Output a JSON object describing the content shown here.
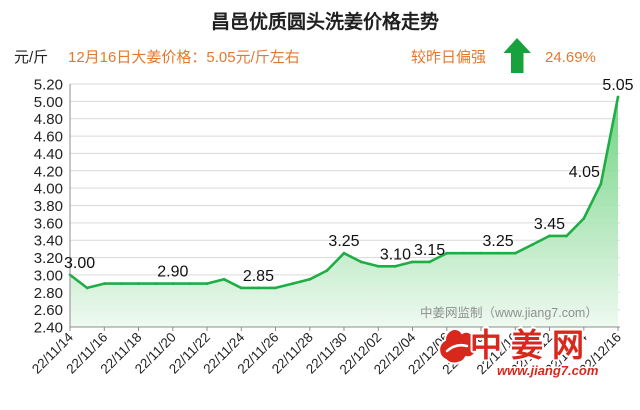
{
  "summary": {
    "price_note": "12月16日大姜价格：5.05元/斤左右",
    "trend_text": "较昨日偏强",
    "trend_icon": "up-arrow-icon",
    "change_pct": "24.69%"
  },
  "watermark": "中姜网监制（www.jiang7.com）",
  "logo": {
    "icon": "ginger-logo-icon",
    "name": "中姜网",
    "url": "www.jiang7.com"
  },
  "colors": {
    "title": "#1f1f1f",
    "unit": "#222222",
    "accent": "#e5782e",
    "trend_up": "#17a23e",
    "series_line": "#1fae45",
    "area_top": "#63cf76",
    "area_bottom": "#eef9f0",
    "grid": "#d9d9d9",
    "logo": "#d8281d",
    "watermark": "#8f8f8f"
  },
  "chart_data": {
    "type": "area",
    "title": "昌邑优质圆头洗姜价格走势",
    "ylabel": "元/斤",
    "ylim": [
      2.4,
      5.2
    ],
    "y_ticks": [
      "2.40",
      "2.60",
      "2.80",
      "3.00",
      "3.20",
      "3.40",
      "3.60",
      "3.80",
      "4.00",
      "4.20",
      "4.40",
      "4.60",
      "4.80",
      "5.00",
      "5.20"
    ],
    "x": [
      "22/11/14",
      "22/11/15",
      "22/11/16",
      "22/11/17",
      "22/11/18",
      "22/11/19",
      "22/11/20",
      "22/11/21",
      "22/11/22",
      "22/11/23",
      "22/11/24",
      "22/11/25",
      "22/11/26",
      "22/11/27",
      "22/11/28",
      "22/11/29",
      "22/11/30",
      "22/12/01",
      "22/12/02",
      "22/12/03",
      "22/12/04",
      "22/12/05",
      "22/12/06",
      "22/12/07",
      "22/12/08",
      "22/12/09",
      "22/12/10",
      "22/12/11",
      "22/12/12",
      "22/12/13",
      "22/12/14",
      "22/12/15",
      "22/12/16"
    ],
    "x_tick_labels": [
      "22/11/14",
      "22/11/16",
      "22/11/18",
      "22/11/20",
      "22/11/22",
      "22/11/24",
      "22/11/26",
      "22/11/28",
      "22/11/30",
      "22/12/02",
      "22/12/04",
      "22/12/06",
      "22/12/08",
      "22/12/10",
      "22/12/12",
      "22/12/14",
      "22/12/16"
    ],
    "series": [
      {
        "values": [
          3.0,
          2.85,
          2.9,
          2.9,
          2.9,
          2.9,
          2.9,
          2.9,
          2.9,
          2.95,
          2.85,
          2.85,
          2.85,
          2.9,
          2.95,
          3.05,
          3.25,
          3.15,
          3.1,
          3.1,
          3.15,
          3.15,
          3.25,
          3.25,
          3.25,
          3.25,
          3.25,
          3.35,
          3.45,
          3.45,
          3.65,
          4.05,
          5.05
        ]
      }
    ],
    "data_labels": [
      {
        "x": "22/11/14",
        "text": "3.00"
      },
      {
        "x": "22/11/20",
        "text": "2.90"
      },
      {
        "x": "22/11/25",
        "text": "2.85"
      },
      {
        "x": "22/11/30",
        "text": "3.25"
      },
      {
        "x": "22/12/03",
        "text": "3.10"
      },
      {
        "x": "22/12/05",
        "text": "3.15"
      },
      {
        "x": "22/12/09",
        "text": "3.25"
      },
      {
        "x": "22/12/12",
        "text": "3.45"
      },
      {
        "x": "22/12/15",
        "text": "4.05"
      },
      {
        "x": "22/12/16",
        "text": "5.05"
      }
    ],
    "grid": true
  }
}
